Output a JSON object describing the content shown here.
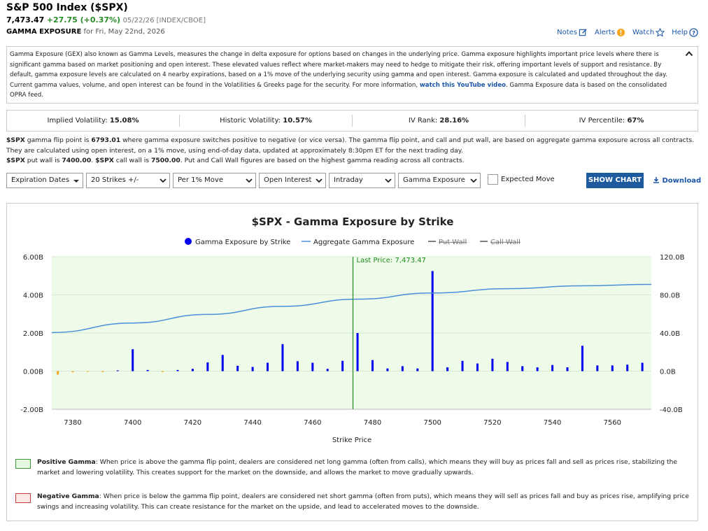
{
  "header": {
    "title": "S&P 500 Index ($SPX)",
    "price": "7,473.47",
    "change": "+27.75 (+0.37%)",
    "meta": "05/22/26 [INDEX/CBOE]",
    "section": "GAMMA EXPOSURE",
    "date": "for Fri, May 22nd, 2026"
  },
  "toplinks": {
    "notes": "Notes",
    "alerts": "Alerts",
    "watch": "Watch",
    "help": "Help"
  },
  "info": {
    "text": "Gamma Exposure (GEX) also known as Gamma Levels, measures the change in delta exposure for options based on changes in the underlying price. Gamma exposure highlights important price levels where there is significant gamma based on market positioning and open interest. These elevated values reflect where market-makers may need to hedge to mitigate their risk, offering important levels of support and resistance. By default, gamma exposure levels are calculated on 4 nearby expirations, based on a 1% move of the underlying security using gamma and open interest. Gamma exposure is calculated and updated throughout the day. Current gamma values, volume, and open interest can be found in the Volatilities & Greeks page for the security. For more information, ",
    "link": "watch this YouTube video",
    "text2": ". Gamma Exposure data is based on the consolidated OPRA feed."
  },
  "stats": [
    {
      "label": "Implied Volatility:",
      "value": "15.08%"
    },
    {
      "label": "Historic Volatility:",
      "value": "10.57%"
    },
    {
      "label": "IV Rank:",
      "value": "28.16%"
    },
    {
      "label": "IV Percentile:",
      "value": "67%"
    }
  ],
  "flip": {
    "symbol": "$SPX",
    "t1": " gamma flip point is ",
    "flip_point": "6793.01",
    "t2": " where gamma exposure switches positive to negative (or vice versa). The gamma flip point, and call and put wall, are based on aggregate gamma exposure across all contracts. They are calculated using open interest, on a 1% move, using end-of-day data, updated at approximately 8:30pm ET for the next trading day.",
    "t3": " put wall is ",
    "put_wall": "7400.00",
    "t4": ". ",
    "t5": " call wall is ",
    "call_wall": "7500.00",
    "t6": ". Put and Call Wall figures are based on the highest gamma reading across all contracts."
  },
  "controls": {
    "expiration": "Expiration Dates",
    "strikes": "20 Strikes +/-",
    "move": "Per 1% Move",
    "basis": "Open Interest",
    "period": "Intraday",
    "metric": "Gamma Exposure",
    "expected_move": "Expected Move",
    "show_chart": "SHOW CHART",
    "download": "Download"
  },
  "colors": {
    "positive": "#0000ee",
    "negative": "#f5a623",
    "aggregate": "#4a90d9",
    "last_price": "#228b22",
    "accent": "#1d5a9e"
  },
  "chart_data": {
    "type": "bar",
    "title": "$SPX - Gamma Exposure by Strike",
    "xlabel": "Strike Price",
    "legend": [
      "Gamma Exposure by Strike",
      "Aggregate Gamma Exposure",
      "Put Wall",
      "Call Wall"
    ],
    "xlim": [
      7373,
      7573
    ],
    "x_ticks": [
      7380,
      7400,
      7420,
      7440,
      7460,
      7480,
      7500,
      7520,
      7540,
      7560
    ],
    "y_ticks": [
      "6.00B",
      "4.00B",
      "2.00B",
      "0.00B",
      "-2.00B"
    ],
    "y_ticks_values": [
      6,
      4,
      2,
      0,
      -2
    ],
    "ylim": [
      -2,
      6
    ],
    "y2_ticks": [
      "120.0B",
      "80.0B",
      "40.0B",
      "0.0B",
      "-40.0B"
    ],
    "y2_ticks_values": [
      120,
      80,
      40,
      0,
      -40
    ],
    "y2lim": [
      -40,
      120
    ],
    "last_price": 7473.47,
    "last_price_label": "Last Price: 7,473.47",
    "bars": [
      {
        "x": 7375,
        "y": -0.18
      },
      {
        "x": 7380,
        "y": -0.06
      },
      {
        "x": 7385,
        "y": -0.03
      },
      {
        "x": 7390,
        "y": -0.05
      },
      {
        "x": 7395,
        "y": 0.04
      },
      {
        "x": 7400,
        "y": 1.15
      },
      {
        "x": 7405,
        "y": 0.06
      },
      {
        "x": 7410,
        "y": -0.05
      },
      {
        "x": 7415,
        "y": 0.06
      },
      {
        "x": 7420,
        "y": 0.12
      },
      {
        "x": 7425,
        "y": 0.46
      },
      {
        "x": 7430,
        "y": 0.85
      },
      {
        "x": 7435,
        "y": 0.28
      },
      {
        "x": 7440,
        "y": 0.22
      },
      {
        "x": 7445,
        "y": 0.44
      },
      {
        "x": 7450,
        "y": 1.42
      },
      {
        "x": 7455,
        "y": 0.52
      },
      {
        "x": 7460,
        "y": 0.44
      },
      {
        "x": 7465,
        "y": 0.12
      },
      {
        "x": 7470,
        "y": 0.54
      },
      {
        "x": 7475,
        "y": 2.0
      },
      {
        "x": 7480,
        "y": 0.58
      },
      {
        "x": 7485,
        "y": 0.14
      },
      {
        "x": 7490,
        "y": 0.26
      },
      {
        "x": 7495,
        "y": 0.14
      },
      {
        "x": 7500,
        "y": 5.25
      },
      {
        "x": 7505,
        "y": 0.2
      },
      {
        "x": 7510,
        "y": 0.54
      },
      {
        "x": 7515,
        "y": 0.4
      },
      {
        "x": 7520,
        "y": 0.65
      },
      {
        "x": 7525,
        "y": 0.48
      },
      {
        "x": 7530,
        "y": 0.26
      },
      {
        "x": 7535,
        "y": 0.2
      },
      {
        "x": 7540,
        "y": 0.32
      },
      {
        "x": 7545,
        "y": 0.2
      },
      {
        "x": 7550,
        "y": 1.33
      },
      {
        "x": 7555,
        "y": 0.3
      },
      {
        "x": 7560,
        "y": 0.3
      },
      {
        "x": 7565,
        "y": 0.34
      },
      {
        "x": 7570,
        "y": 0.44
      }
    ],
    "aggregate": [
      {
        "x": 7373,
        "y": 40.5
      },
      {
        "x": 7400,
        "y": 50.5
      },
      {
        "x": 7425,
        "y": 59.5
      },
      {
        "x": 7450,
        "y": 68
      },
      {
        "x": 7475,
        "y": 75.5
      },
      {
        "x": 7500,
        "y": 82
      },
      {
        "x": 7525,
        "y": 86.5
      },
      {
        "x": 7550,
        "y": 89.5
      },
      {
        "x": 7573,
        "y": 91
      }
    ]
  },
  "notes": {
    "positive_title": "Positive Gamma",
    "positive_text": ": When price is above the gamma flip point, dealers are considered net long gamma (often from calls), which means they will buy as prices fall and sell as prices rise, stabilizing the market and lowering volatility. This creates support for the market on the downside, and allows the market to move gradually upwards.",
    "negative_title": "Negative Gamma",
    "negative_text": ": When price is below the gamma flip point, dealers are considered net short gamma (often from puts), which means they will sell as prices fall and buy as prices rise, amplifying price swings and increasing volatility. This can create resistance for the market on the upside, and lead to accelerated moves to the downside."
  }
}
